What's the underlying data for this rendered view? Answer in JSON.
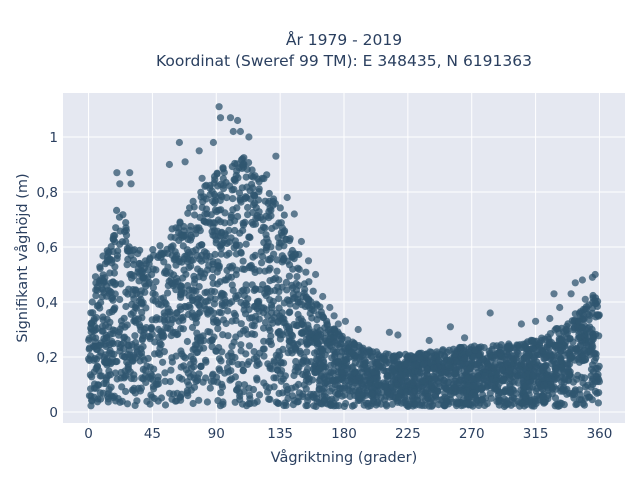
{
  "chart_data": {
    "type": "scatter",
    "title": [
      "År 1979 - 2019",
      "Koordinat (Sweref 99 TM): E 348435, N 6191363"
    ],
    "xlabel": "Vågriktning (grader)",
    "ylabel": "Signifikant våghöjd (m)",
    "xlim": [
      -18,
      378
    ],
    "ylim": [
      -0.04,
      1.16
    ],
    "x_ticks": [
      0,
      45,
      90,
      135,
      180,
      225,
      270,
      315,
      360
    ],
    "x_tick_labels": [
      "0",
      "45",
      "90",
      "135",
      "180",
      "225",
      "270",
      "315",
      "360"
    ],
    "y_ticks": [
      0,
      0.2,
      0.4,
      0.6,
      0.8,
      1.0
    ],
    "y_tick_labels": [
      "0",
      "0,2",
      "0,4",
      "0,6",
      "0,8",
      "1"
    ],
    "grid": true,
    "legend": false,
    "marker_color": "#30566f",
    "plot_background": "#e5e8f1",
    "envelope": {
      "direction_deg": [
        0,
        5,
        10,
        15,
        20,
        25,
        30,
        40,
        50,
        60,
        70,
        80,
        90,
        100,
        110,
        120,
        130,
        140,
        150,
        160,
        170,
        180,
        200,
        220,
        240,
        260,
        280,
        300,
        320,
        340,
        355,
        360
      ],
      "max_height_m": [
        0.3,
        0.5,
        0.57,
        0.62,
        0.74,
        0.74,
        0.6,
        0.58,
        0.62,
        0.68,
        0.76,
        0.82,
        0.88,
        0.9,
        0.93,
        0.89,
        0.85,
        0.7,
        0.55,
        0.42,
        0.32,
        0.27,
        0.22,
        0.21,
        0.22,
        0.24,
        0.24,
        0.25,
        0.27,
        0.34,
        0.43,
        0.4
      ],
      "min_height_m": 0.02
    },
    "outliers": [
      {
        "x": 92,
        "y": 1.11
      },
      {
        "x": 93,
        "y": 1.07
      },
      {
        "x": 100,
        "y": 1.07
      },
      {
        "x": 105,
        "y": 1.06
      },
      {
        "x": 102,
        "y": 1.02
      },
      {
        "x": 107,
        "y": 1.02
      },
      {
        "x": 113,
        "y": 1.0
      },
      {
        "x": 88,
        "y": 0.98
      },
      {
        "x": 64,
        "y": 0.98
      },
      {
        "x": 78,
        "y": 0.95
      },
      {
        "x": 68,
        "y": 0.91
      },
      {
        "x": 57,
        "y": 0.9
      },
      {
        "x": 20,
        "y": 0.87
      },
      {
        "x": 29,
        "y": 0.87
      },
      {
        "x": 22,
        "y": 0.83
      },
      {
        "x": 30,
        "y": 0.83
      },
      {
        "x": 80,
        "y": 0.85
      },
      {
        "x": 132,
        "y": 0.93
      },
      {
        "x": 140,
        "y": 0.78
      },
      {
        "x": 145,
        "y": 0.72
      },
      {
        "x": 150,
        "y": 0.62
      },
      {
        "x": 155,
        "y": 0.55
      },
      {
        "x": 160,
        "y": 0.5
      },
      {
        "x": 165,
        "y": 0.42
      },
      {
        "x": 170,
        "y": 0.38
      },
      {
        "x": 173,
        "y": 0.35
      },
      {
        "x": 176,
        "y": 0.32
      },
      {
        "x": 181,
        "y": 0.33
      },
      {
        "x": 190,
        "y": 0.3
      },
      {
        "x": 212,
        "y": 0.29
      },
      {
        "x": 218,
        "y": 0.28
      },
      {
        "x": 240,
        "y": 0.26
      },
      {
        "x": 255,
        "y": 0.31
      },
      {
        "x": 265,
        "y": 0.27
      },
      {
        "x": 283,
        "y": 0.36
      },
      {
        "x": 305,
        "y": 0.32
      },
      {
        "x": 315,
        "y": 0.33
      },
      {
        "x": 325,
        "y": 0.34
      },
      {
        "x": 332,
        "y": 0.38
      },
      {
        "x": 328,
        "y": 0.43
      },
      {
        "x": 340,
        "y": 0.43
      },
      {
        "x": 343,
        "y": 0.47
      },
      {
        "x": 348,
        "y": 0.48
      },
      {
        "x": 355,
        "y": 0.49
      },
      {
        "x": 357,
        "y": 0.5
      },
      {
        "x": 350,
        "y": 0.41
      }
    ]
  }
}
